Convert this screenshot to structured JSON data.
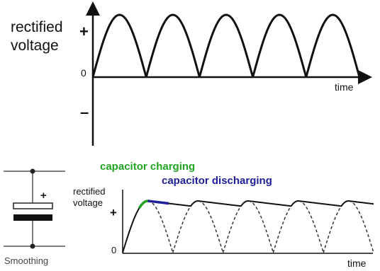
{
  "top_graph": {
    "ylabel_line1": "rectified",
    "ylabel_line2": "voltage",
    "plus": "+",
    "minus": "–",
    "zero": "0",
    "xlabel": "time",
    "half_cycles": 5
  },
  "circuit": {
    "polarity": "+",
    "caption": "Smoothing"
  },
  "bottom_graph": {
    "ylabel_line1": "rectified",
    "ylabel_line2": "voltage",
    "plus": "+",
    "zero": "0",
    "xlabel": "time",
    "charging_label": "capacitor charging",
    "discharging_label": "capacitor discharging",
    "half_cycles": 5
  },
  "colors": {
    "charging": "#21a421",
    "discharging": "#1f1f9c",
    "waveform": "#111111"
  }
}
